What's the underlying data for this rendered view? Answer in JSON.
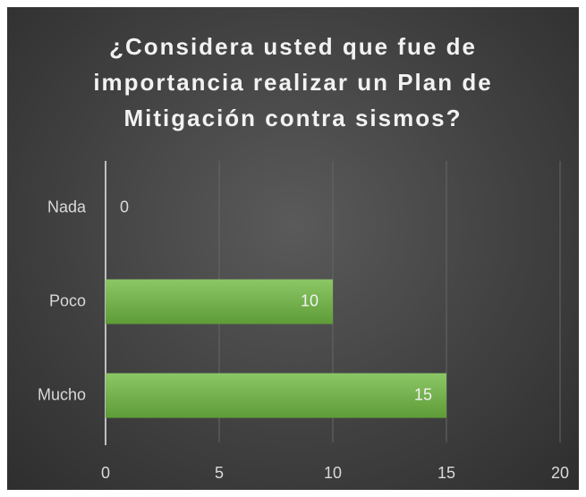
{
  "chart_data": {
    "type": "bar",
    "orientation": "horizontal",
    "title": "¿Considera usted que fue de importancia realizar un Plan de Mitigación contra sismos?",
    "categories": [
      "Nada",
      "Poco",
      "Mucho"
    ],
    "values": [
      0,
      10,
      15
    ],
    "color": "#70ad47",
    "xlim": [
      0,
      20
    ],
    "xticks": [
      0,
      5,
      10,
      15,
      20
    ],
    "grid": true
  }
}
